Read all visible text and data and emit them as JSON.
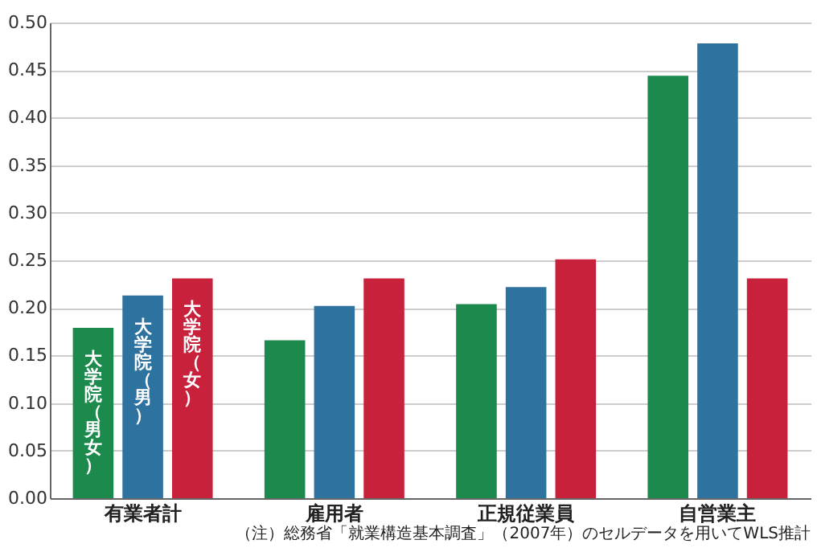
{
  "chart_data": {
    "type": "bar",
    "categories": [
      "有業者計",
      "雇用者",
      "正規従業員",
      "自営業主"
    ],
    "series": [
      {
        "name": "大学院（男女）",
        "color": "#1b8a4c",
        "values": [
          0.179,
          0.166,
          0.204,
          0.444
        ]
      },
      {
        "name": "大学院（男）",
        "color": "#2e72a0",
        "values": [
          0.213,
          0.202,
          0.222,
          0.478
        ]
      },
      {
        "name": "大学院（女）",
        "color": "#c8213b",
        "values": [
          0.231,
          0.231,
          0.251,
          0.231
        ]
      }
    ],
    "ylim": [
      0,
      0.5
    ],
    "yticks": [
      {
        "value": 0,
        "label": "0.00"
      },
      {
        "value": 0.05,
        "label": "0.05"
      },
      {
        "value": 0.1,
        "label": "0.10"
      },
      {
        "value": 0.15,
        "label": "0.15"
      },
      {
        "value": 0.2,
        "label": "0.20"
      },
      {
        "value": 0.25,
        "label": "0.25"
      },
      {
        "value": 0.3,
        "label": "0.30"
      },
      {
        "value": 0.35,
        "label": "0.35"
      },
      {
        "value": 0.4,
        "label": "0.40"
      },
      {
        "value": 0.45,
        "label": "0.45"
      },
      {
        "value": 0.5,
        "label": "0.50"
      }
    ],
    "grid": "y",
    "legend": false,
    "annotations": [
      "（注）総務省「就業構造基本調査」（2007年）のセルデータを用いてWLS推計"
    ]
  }
}
